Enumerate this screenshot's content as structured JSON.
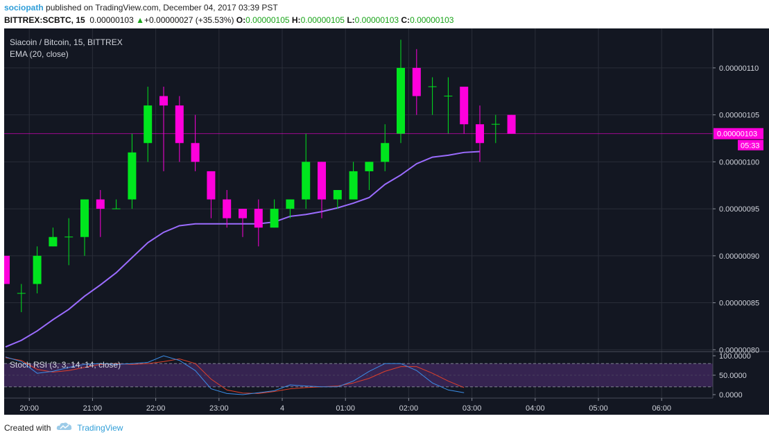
{
  "header": {
    "author": "sociopath",
    "published_text": "published on TradingView.com, December 04, 2017 03:39 PST",
    "symbol_line": "BITTREX:SCBTC, 15",
    "last_price": "0.00000103",
    "change": "+0.00000027 (+35.53%)",
    "open_label": "O:",
    "open": "0.00000105",
    "high_label": "H:",
    "high": "0.00000105",
    "low_label": "L:",
    "low": "0.00000103",
    "close_label": "C:",
    "close": "0.00000103"
  },
  "footer": {
    "created_with": "Created with",
    "brand": "TradingView"
  },
  "colors": {
    "background": "#131722",
    "grid": "#2a2e39",
    "up": "#00e61e",
    "down": "#ff00dc",
    "ema": "#9b6cff",
    "rsi_k": "#3b8ee8",
    "rsi_d": "#e0402a",
    "rsi_band": "#3b2656"
  },
  "chart_data": {
    "type": "candlestick",
    "title": "Siacoin / Bitcoin, 15, BITTREX",
    "indicator_label": "EMA (20, close)",
    "price_axis": {
      "ticks": [
        "0.00000110",
        "0.00000105",
        "0.00000100",
        "0.00000095",
        "0.00000090",
        "0.00000085",
        "0.00000080"
      ],
      "tick_values": [
        110,
        105,
        100,
        95,
        90,
        85,
        80
      ],
      "range": [
        79.8,
        114.2
      ],
      "unit_note": "values in 1e-8 BTC"
    },
    "last_price_label": "0.00000103",
    "last_price_value": 103,
    "countdown_label": "05:33",
    "time_axis": {
      "labels": [
        "20:00",
        "21:00",
        "22:00",
        "23:00",
        "4",
        "01:00",
        "02:00",
        "03:00",
        "04:00",
        "05:00",
        "06:00"
      ],
      "label_bars": [
        1.5,
        5.5,
        9.5,
        13.5,
        17.5,
        21.5,
        25.5,
        29.5,
        33.5,
        37.5,
        41.5
      ]
    },
    "candles": [
      {
        "t": "19:30",
        "o": 90,
        "h": 90,
        "l": 87,
        "c": 87
      },
      {
        "t": "19:45",
        "o": 86,
        "h": 87,
        "l": 84,
        "c": 86
      },
      {
        "t": "20:00",
        "o": 87,
        "h": 91,
        "l": 86,
        "c": 90
      },
      {
        "t": "20:15",
        "o": 91,
        "h": 93,
        "l": 91,
        "c": 92
      },
      {
        "t": "20:30",
        "o": 92,
        "h": 94,
        "l": 89,
        "c": 92
      },
      {
        "t": "20:45",
        "o": 92,
        "h": 96,
        "l": 90,
        "c": 96
      },
      {
        "t": "21:00",
        "o": 96,
        "h": 97,
        "l": 92,
        "c": 95
      },
      {
        "t": "21:15",
        "o": 95,
        "h": 96,
        "l": 95,
        "c": 95
      },
      {
        "t": "21:30",
        "o": 96,
        "h": 103,
        "l": 95,
        "c": 101
      },
      {
        "t": "21:45",
        "o": 102,
        "h": 108,
        "l": 100,
        "c": 106
      },
      {
        "t": "22:00",
        "o": 107,
        "h": 108,
        "l": 99,
        "c": 106
      },
      {
        "t": "22:15",
        "o": 106,
        "h": 107,
        "l": 100,
        "c": 102
      },
      {
        "t": "22:30",
        "o": 102,
        "h": 105,
        "l": 99,
        "c": 100
      },
      {
        "t": "22:45",
        "o": 99,
        "h": 99,
        "l": 94,
        "c": 96
      },
      {
        "t": "23:00",
        "o": 96,
        "h": 97,
        "l": 93,
        "c": 94
      },
      {
        "t": "23:15",
        "o": 95,
        "h": 95,
        "l": 92,
        "c": 94
      },
      {
        "t": "23:30",
        "o": 95,
        "h": 96,
        "l": 91,
        "c": 93
      },
      {
        "t": "23:45",
        "o": 93,
        "h": 96,
        "l": 93,
        "c": 95
      },
      {
        "t": "00:00",
        "o": 95,
        "h": 96,
        "l": 94,
        "c": 96
      },
      {
        "t": "00:15",
        "o": 96,
        "h": 103,
        "l": 95,
        "c": 100
      },
      {
        "t": "00:30",
        "o": 100,
        "h": 100,
        "l": 94,
        "c": 96
      },
      {
        "t": "00:45",
        "o": 96,
        "h": 97,
        "l": 95,
        "c": 97
      },
      {
        "t": "01:00",
        "o": 96,
        "h": 100,
        "l": 96,
        "c": 99
      },
      {
        "t": "01:15",
        "o": 99,
        "h": 100,
        "l": 97,
        "c": 100
      },
      {
        "t": "01:30",
        "o": 100,
        "h": 104,
        "l": 99,
        "c": 102
      },
      {
        "t": "01:45",
        "o": 103,
        "h": 113,
        "l": 102,
        "c": 110
      },
      {
        "t": "02:00",
        "o": 110,
        "h": 112,
        "l": 105,
        "c": 107
      },
      {
        "t": "02:15",
        "o": 108,
        "h": 109,
        "l": 105,
        "c": 108
      },
      {
        "t": "02:30",
        "o": 107,
        "h": 109,
        "l": 103,
        "c": 107
      },
      {
        "t": "02:45",
        "o": 108,
        "h": 108,
        "l": 103,
        "c": 104
      },
      {
        "t": "03:00",
        "o": 104,
        "h": 106,
        "l": 100,
        "c": 102
      },
      {
        "t": "03:15",
        "o": 104,
        "h": 105,
        "l": 102,
        "c": 104
      },
      {
        "t": "03:30",
        "o": 105,
        "h": 105,
        "l": 103,
        "c": 103
      }
    ],
    "ema": [
      80.3,
      81,
      82,
      83.2,
      84.3,
      85.7,
      86.9,
      88.2,
      89.8,
      91.4,
      92.5,
      93.2,
      93.4,
      93.4,
      93.4,
      93.4,
      93.4,
      93.6,
      94.2,
      94.4,
      94.7,
      95.1,
      95.6,
      96.2,
      97.6,
      98.6,
      99.8,
      100.5,
      100.7,
      101.0,
      101.1
    ],
    "ema_start_bar": 0,
    "stoch_rsi": {
      "label": "Stoch RSI (3, 3, 14, 14, close)",
      "ticks": [
        "100.0000",
        "50.0000",
        "0.0000"
      ],
      "tick_values": [
        100,
        50,
        0
      ],
      "upper_band": 80,
      "lower_band": 20,
      "k": [
        97,
        85,
        55,
        60,
        70,
        78,
        80,
        78,
        80,
        83,
        100,
        88,
        62,
        15,
        3,
        0,
        5,
        10,
        25,
        22,
        20,
        20,
        35,
        60,
        80,
        80,
        62,
        30,
        12,
        5
      ],
      "d": [
        95,
        88,
        65,
        58,
        62,
        70,
        78,
        80,
        78,
        80,
        85,
        92,
        80,
        40,
        12,
        4,
        3,
        8,
        15,
        18,
        20,
        22,
        30,
        42,
        60,
        72,
        72,
        55,
        35,
        18
      ]
    }
  }
}
